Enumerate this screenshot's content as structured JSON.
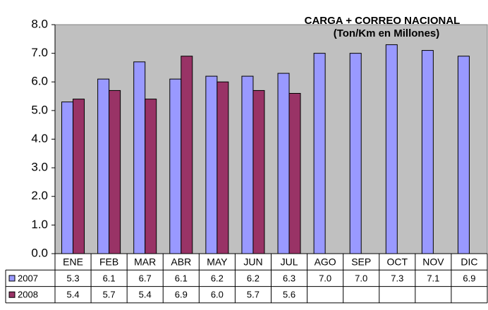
{
  "chart_data": {
    "type": "bar",
    "title": "CARGA + CORREO NACIONAL",
    "subtitle": "(Ton/Km en Millones)",
    "categories": [
      "ENE",
      "FEB",
      "MAR",
      "ABR",
      "MAY",
      "JUN",
      "JUL",
      "AGO",
      "SEP",
      "OCT",
      "NOV",
      "DIC"
    ],
    "series": [
      {
        "name": "2007",
        "color": "#9999ff",
        "values": [
          5.3,
          6.1,
          6.7,
          6.1,
          6.2,
          6.2,
          6.3,
          7.0,
          7.0,
          7.3,
          7.1,
          6.9
        ],
        "value_labels": [
          "5.3",
          "6.1",
          "6.7",
          "6.1",
          "6.2",
          "6.2",
          "6.3",
          "7.0",
          "7.0",
          "7.3",
          "7.1",
          "6.9"
        ]
      },
      {
        "name": "2008",
        "color": "#993366",
        "values": [
          5.4,
          5.7,
          5.4,
          6.9,
          6.0,
          5.7,
          5.6,
          null,
          null,
          null,
          null,
          null
        ],
        "value_labels": [
          "5.4",
          "5.7",
          "5.4",
          "6.9",
          "6.0",
          "5.7",
          "5.6",
          null,
          null,
          null,
          null,
          null
        ]
      }
    ],
    "ylim": [
      0,
      8
    ],
    "yticks": [
      {
        "value": 0,
        "label": "0.0"
      },
      {
        "value": 1,
        "label": "1.0"
      },
      {
        "value": 2,
        "label": "2.0"
      },
      {
        "value": 3,
        "label": "3.0"
      },
      {
        "value": 4,
        "label": "4.0"
      },
      {
        "value": 5,
        "label": "5.0"
      },
      {
        "value": 6,
        "label": "6.0"
      },
      {
        "value": 7,
        "label": "7.0"
      },
      {
        "value": 8,
        "label": "8.0"
      }
    ],
    "grid": false,
    "plot_background": "#c0c0c0"
  }
}
